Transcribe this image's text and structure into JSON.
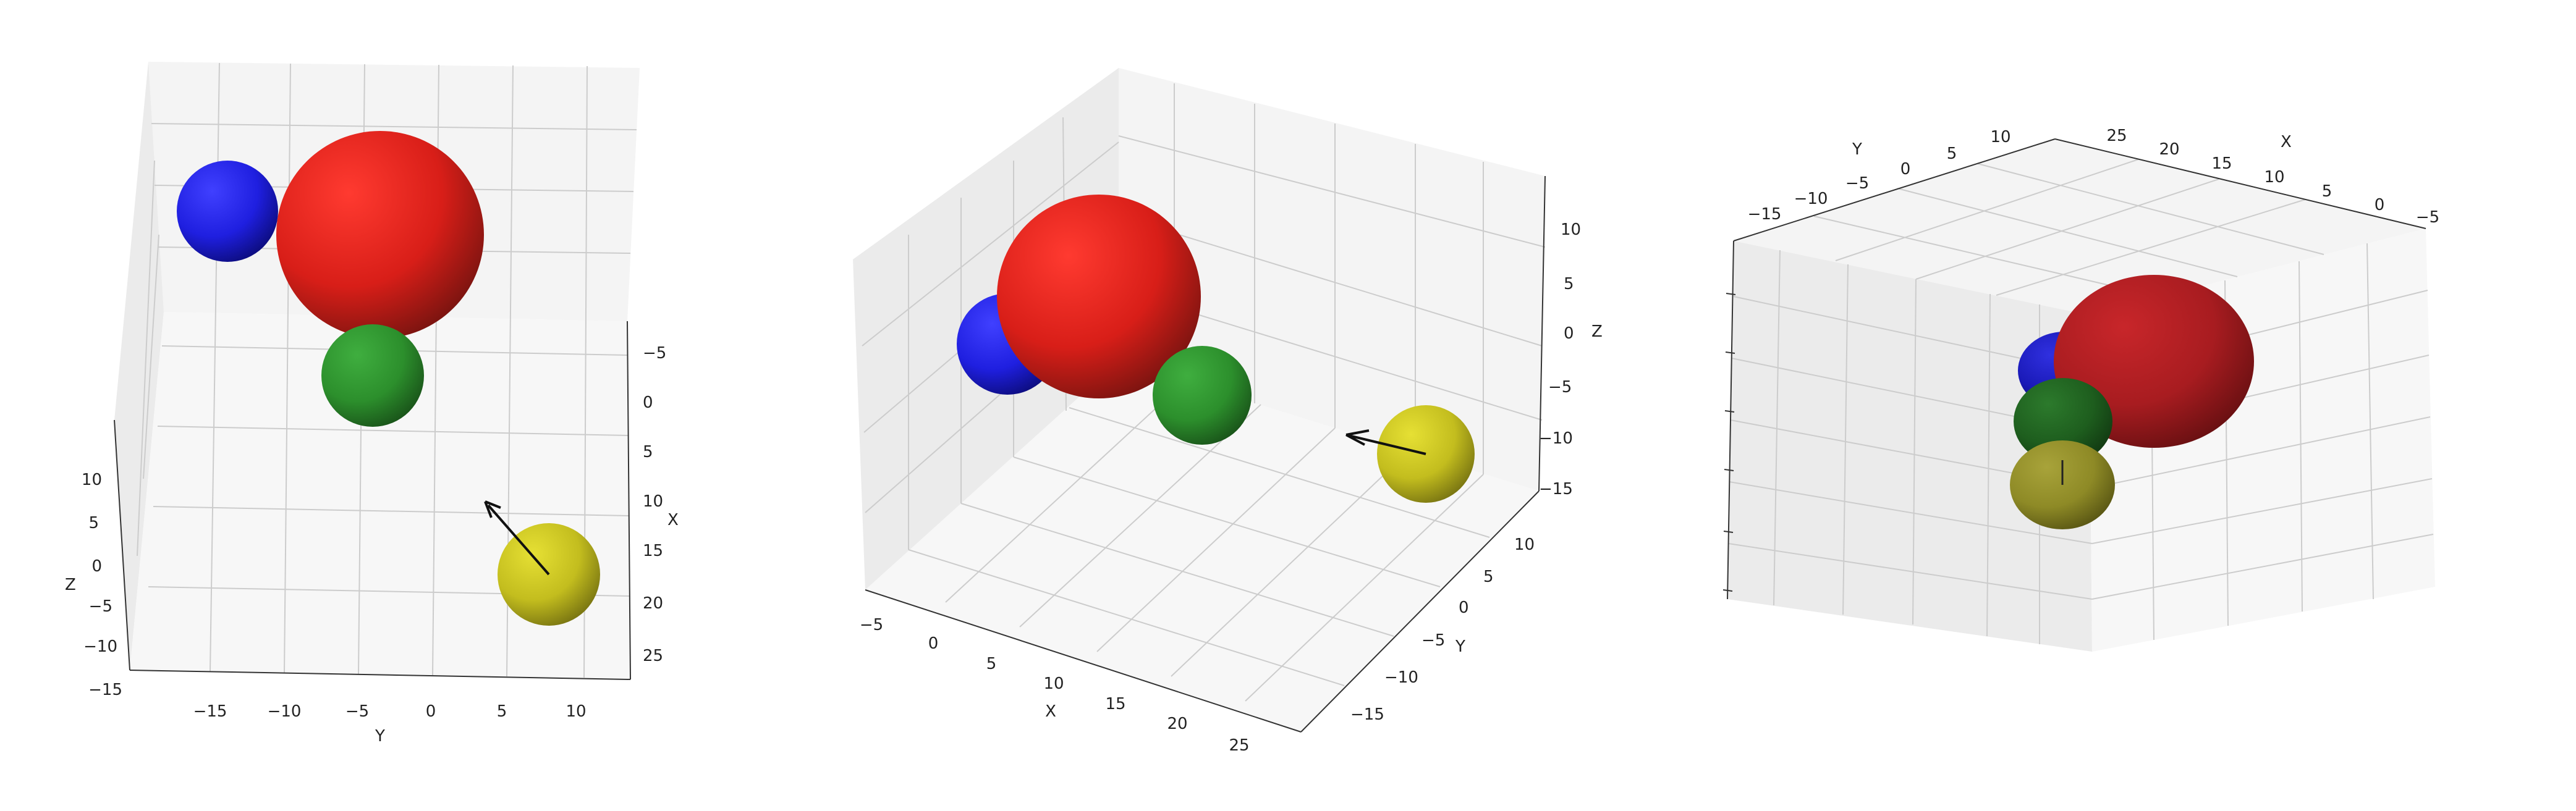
{
  "colors": {
    "red": "#e8221c",
    "blue": "#1f1fe6",
    "green": "#2f9a2f",
    "yellow": "#c9c31e",
    "arrow": "#111111",
    "pane": "#f2f2f2",
    "grid": "#c8c8c8"
  },
  "chart_data": [
    {
      "type": "scatter",
      "kind": "3d-spheres",
      "title": "",
      "axes": {
        "xlabel": "X",
        "ylabel": "Y",
        "zlabel": "Z"
      },
      "xticks": [
        "−5",
        "0",
        "5",
        "10",
        "15",
        "20",
        "25"
      ],
      "yticks": [
        "−15",
        "−10",
        "−5",
        "0",
        "5",
        "10"
      ],
      "zticks": [
        "10",
        "5",
        "0",
        "−5",
        "−10",
        "−15"
      ],
      "spheres": [
        "red",
        "blue",
        "green",
        "yellow"
      ],
      "arrow": true
    },
    {
      "type": "scatter",
      "kind": "3d-spheres",
      "title": "",
      "axes": {
        "xlabel": "X",
        "ylabel": "Y",
        "zlabel": "Z"
      },
      "xticks": [
        "−5",
        "0",
        "5",
        "10",
        "15",
        "20",
        "25"
      ],
      "yticks": [
        "10",
        "5",
        "0",
        "−5",
        "−10",
        "−15"
      ],
      "zticks": [
        "10",
        "5",
        "0",
        "−5",
        "−10",
        "−15"
      ],
      "spheres": [
        "red",
        "blue",
        "green",
        "yellow"
      ],
      "arrow": true
    },
    {
      "type": "scatter",
      "kind": "3d-spheres",
      "title": "",
      "axes": {
        "xlabel": "X",
        "ylabel": "Y",
        "zlabel": ""
      },
      "xticks": [
        "25",
        "20",
        "15",
        "10",
        "5",
        "0",
        "−5"
      ],
      "yticks": [
        "−15",
        "−10",
        "−5",
        "0",
        "5",
        "10"
      ],
      "zticks": [],
      "spheres": [
        "red",
        "blue",
        "green",
        "yellow"
      ],
      "arrow": true
    }
  ]
}
